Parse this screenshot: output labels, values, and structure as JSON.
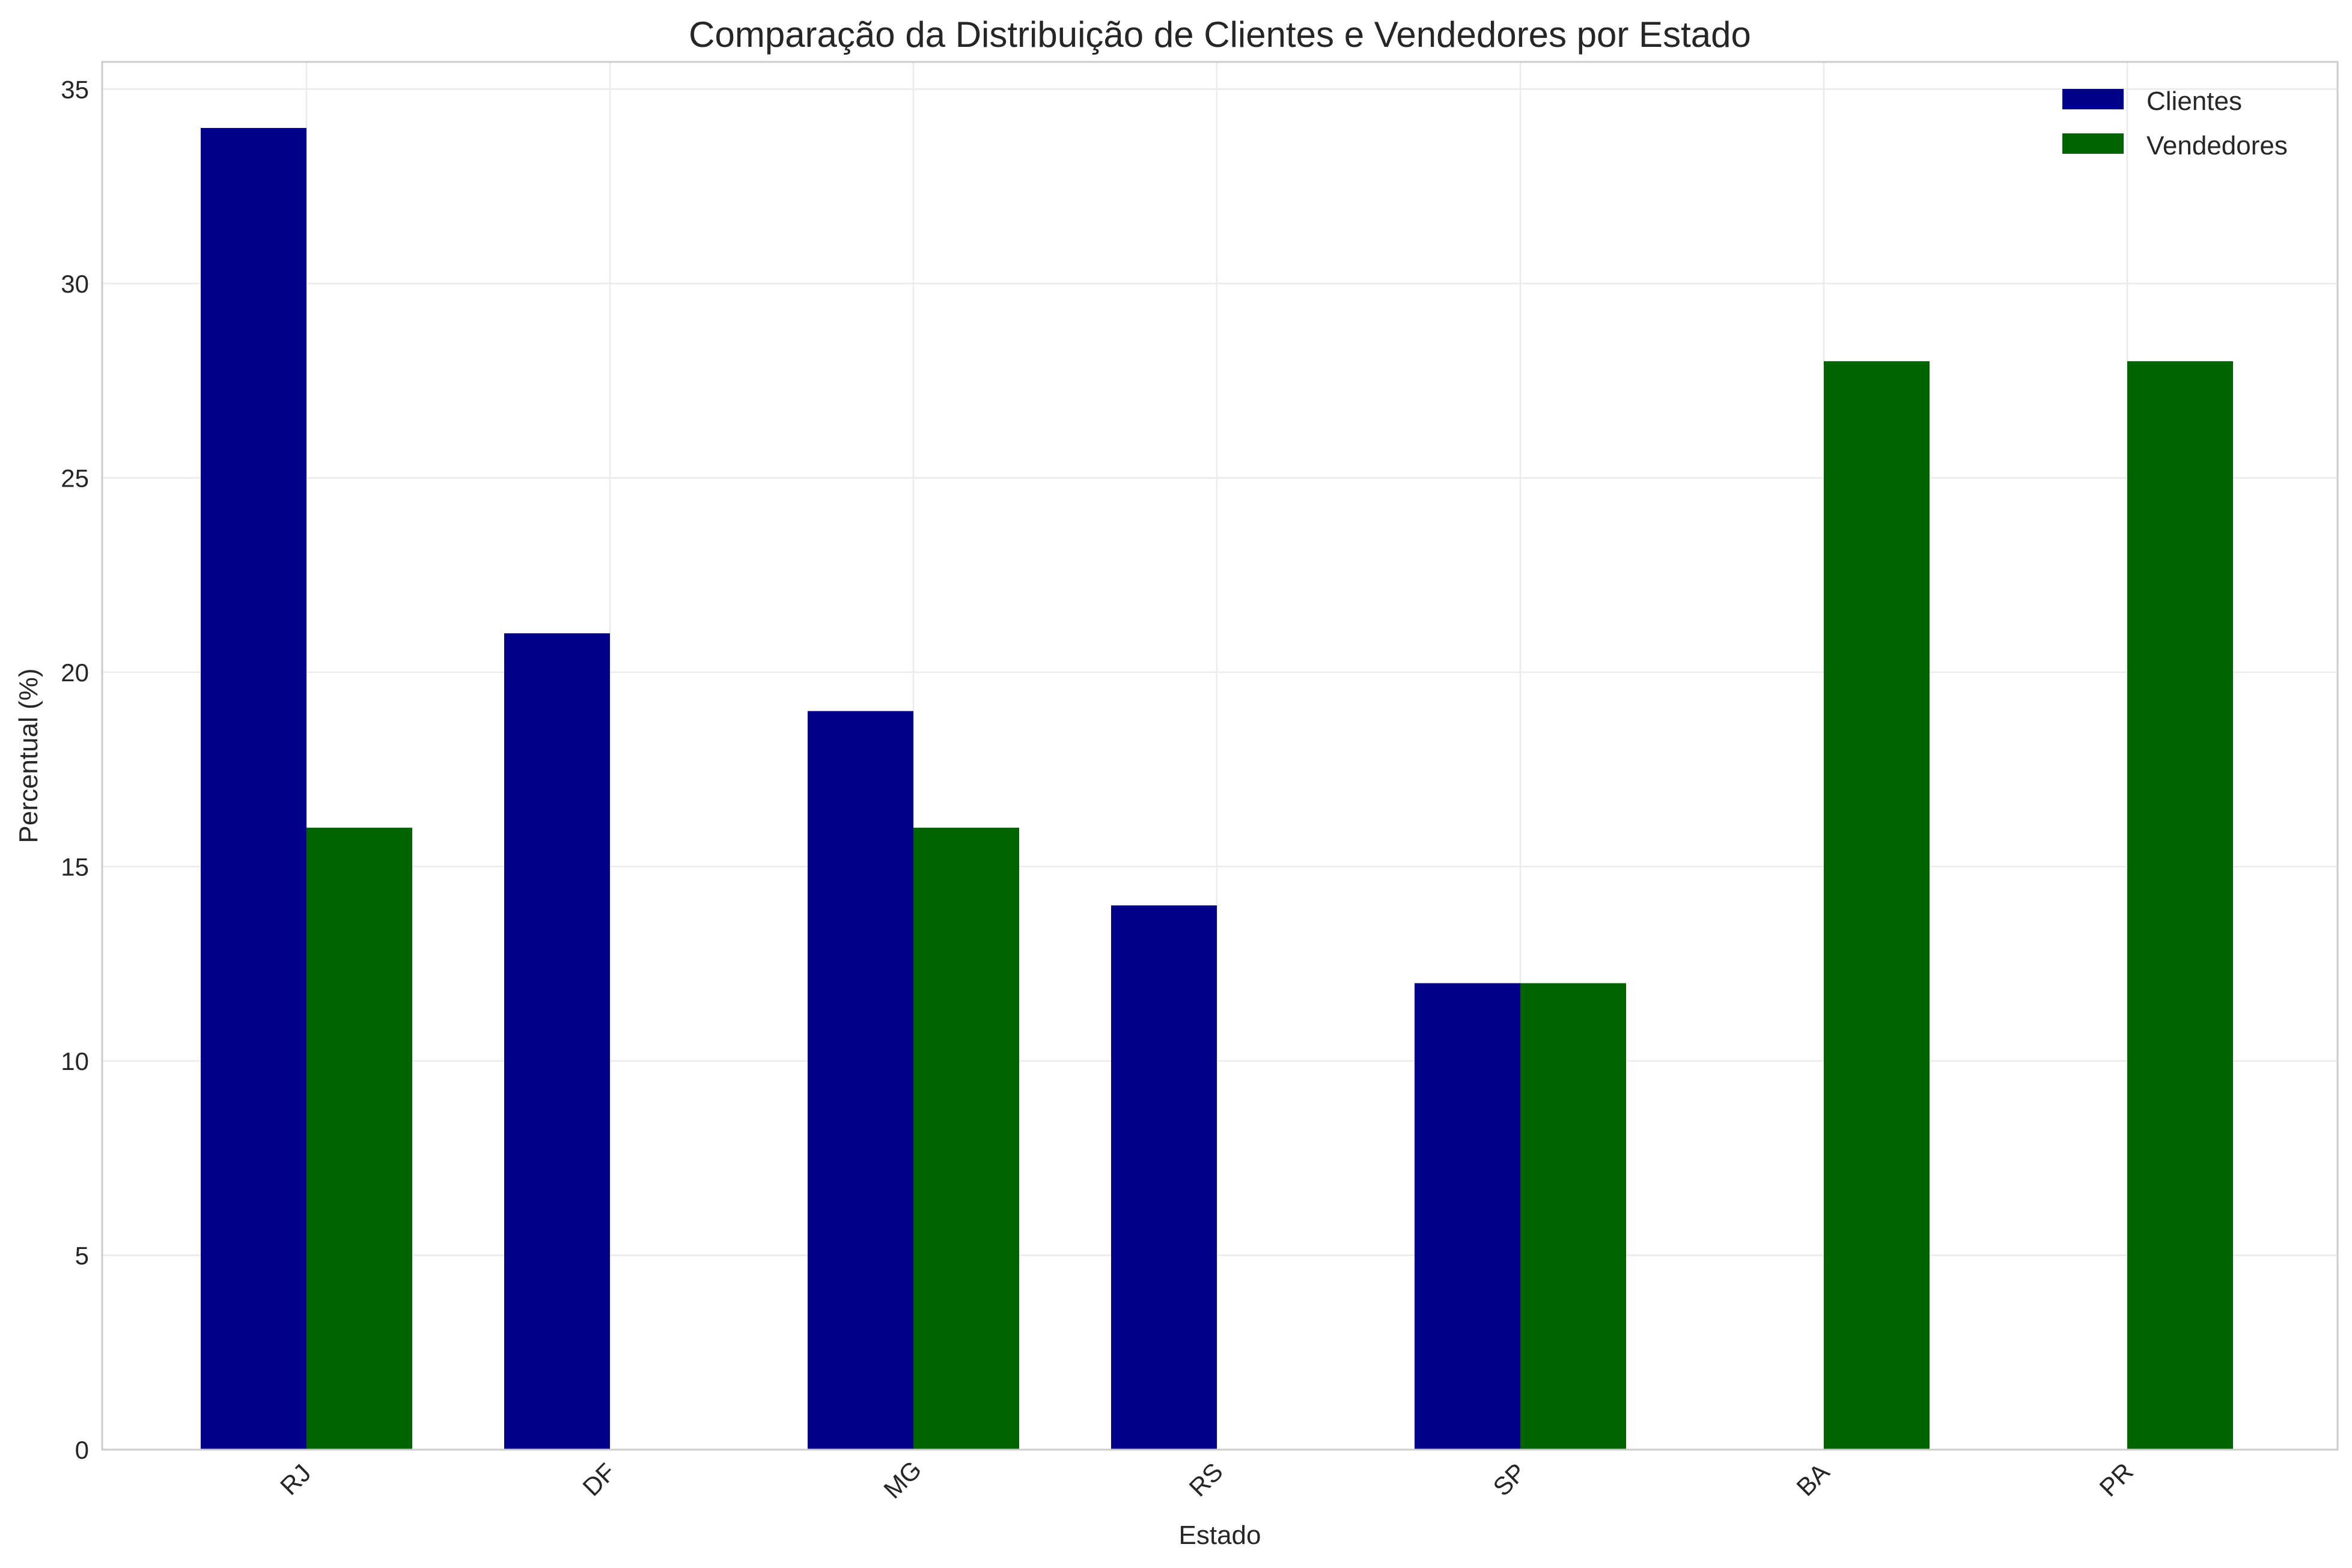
{
  "chart_data": {
    "type": "bar",
    "title": "Comparação da Distribuição de Clientes e Vendedores por Estado",
    "xlabel": "Estado",
    "ylabel": "Percentual (%)",
    "categories": [
      "RJ",
      "DF",
      "MG",
      "RS",
      "SP",
      "BA",
      "PR"
    ],
    "series": [
      {
        "name": "Clientes",
        "color": "#00008b",
        "values": [
          34,
          21,
          19,
          14,
          12,
          0,
          0
        ]
      },
      {
        "name": "Vendedores",
        "color": "#006400",
        "values": [
          16,
          0,
          16,
          0,
          12,
          28,
          28
        ]
      }
    ],
    "ylim": [
      0,
      35.7
    ],
    "yticks": [
      0,
      5,
      10,
      15,
      20,
      25,
      30,
      35
    ],
    "grid": true,
    "legend_position": "top-right",
    "xtick_rotation": 45
  }
}
